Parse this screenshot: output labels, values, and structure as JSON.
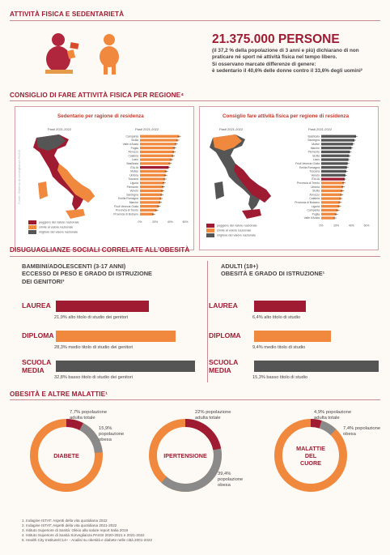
{
  "sections": {
    "s1": "ATTIVITÀ FISICA E SEDENTARIETÀ",
    "s2": "CONSIGLIO DI FARE ATTIVITÀ FISICA PER REGIONE⁴",
    "s3": "DISUGUAGLIANZE SOCIALI CORRELATE ALL'OBESITÀ",
    "s4": "OBESITÀ E ALTRE  MALATTIE¹"
  },
  "headline": {
    "number": "21.375.000 PERSONE",
    "line1": "(il 37,2 % della popolazione di 3 anni e più) dichiarano di non",
    "line2": "praticare né sport né attività fisica nel tempo libero.",
    "line3": "Si osservano marcate differenze di genere:",
    "line4": "è sedentario il 40,6% delle donne contro il 33,6% degli uomini²"
  },
  "maps": {
    "left": {
      "title": "Sedentario per ragione di residenza",
      "period_a": "Pasti 2021-2022",
      "period_b": "Pasti 2021-2022",
      "watermark": "Fonte: Sistema di sorveglianza PASSI",
      "regions": [
        "Campania",
        "Sicilia",
        "Valle d'Aosta",
        "Puglia",
        "Abruzzo",
        "Calabria",
        "Lazio",
        "Basilicata",
        "ITALIA",
        "Molise",
        "Umbria",
        "Toscana",
        "Liguria",
        "Piemonte",
        "Veneto",
        "Sardegna",
        "Emilia Romagna",
        "Marche",
        "Friuli Venezia Giulia",
        "Provincia di Trento",
        "Provincia di Bolzano"
      ],
      "values": [
        52,
        50,
        48,
        46,
        45,
        44,
        42,
        40,
        38,
        35,
        34,
        33,
        32,
        31,
        30,
        29,
        28,
        27,
        25,
        22,
        18
      ],
      "kinds": [
        "o",
        "o",
        "o",
        "o",
        "o",
        "o",
        "o",
        "o",
        "i",
        "o",
        "o",
        "o",
        "o",
        "o",
        "o",
        "o",
        "o",
        "o",
        "o",
        "o",
        "o"
      ],
      "ticks": [
        "0%",
        "20%",
        "40%",
        "60%"
      ],
      "legend": [
        "peggiore del valore nazionale",
        "simile al valore nazionale",
        "migliore del valore nazionale"
      ]
    },
    "right": {
      "title": "Consiglio fare attività fisica per regione di residenza",
      "period_a": "Pasti 2021-2022",
      "period_b": "Pasti 2021-2022",
      "regions": [
        "Basilicata",
        "Sardegna",
        "Molise",
        "Marche",
        "Piemonte",
        "Sicilia",
        "Lazio",
        "Friuli Venezia Giulia",
        "Emilia Romagna",
        "Toscana",
        "Veneto",
        "ITALIA",
        "Provincia di Trento",
        "Umbria",
        "Sicilia",
        "Abruzzo",
        "Calabria",
        "Provincia di Bolzano",
        "Liguria",
        "Campania",
        "Puglia",
        "Valle d'Aosta"
      ],
      "values": [
        46,
        44,
        42,
        40,
        38,
        37,
        36,
        35,
        34,
        33,
        32,
        31,
        30,
        29,
        28,
        27,
        26,
        25,
        24,
        22,
        20,
        18
      ],
      "kinds": [
        "g",
        "g",
        "g",
        "g",
        "g",
        "g",
        "g",
        "g",
        "g",
        "g",
        "g",
        "i",
        "o",
        "o",
        "o",
        "o",
        "o",
        "o",
        "o",
        "o",
        "o",
        "o"
      ],
      "ticks": [
        "0%",
        "20%",
        "40%",
        "60%"
      ],
      "legend": [
        "peggiore del valore nazionale",
        "simile al valore nazionale",
        "migliore del valore nazionale"
      ]
    }
  },
  "inequalities": {
    "children_heading": [
      "BAMBINI/ADOLESCENTI (3-17 ANNI)",
      "ECCESSO DI PESO E GRADO DI ISTRUZIONE",
      "DEI GENITORI³"
    ],
    "adults_heading": [
      "ADULTI (18+)",
      "OBESITÀ E GRADO DI ISTRUZIONE¹"
    ],
    "children": [
      {
        "label": "LAUREA",
        "label2": "",
        "value": 21.9,
        "caption": "21,9% alto titolo di studio dei genitori",
        "color": "#9e1b32"
      },
      {
        "label": "DIPLOMA",
        "label2": "",
        "value": 28.3,
        "caption": "28,3% medio titolo di studio dei genitori",
        "color": "#f0893e"
      },
      {
        "label": "SCUOLA",
        "label2": "MEDIA",
        "value": 32.8,
        "caption": "32,8% basso titolo di studio dei genitori",
        "color": "#555555"
      }
    ],
    "adults": [
      {
        "label": "LAUREA",
        "label2": "",
        "value": 6.4,
        "caption": "6,4% alto titolo di studio",
        "color": "#9e1b32"
      },
      {
        "label": "DIPLOMA",
        "label2": "",
        "value": 9.4,
        "caption": "9,4% medio titolo di studio",
        "color": "#f0893e"
      },
      {
        "label": "SCUOLA",
        "label2": "MEDIA",
        "value": 15.3,
        "caption": "15,3% basso titolo di studio",
        "color": "#555555"
      }
    ]
  },
  "diseases": [
    {
      "name": [
        "DIABETE"
      ],
      "color_name": "#9e1b32",
      "cap_a": [
        "7,7% popolazione",
        "adulta totale"
      ],
      "a": 7.7,
      "cap_b": [
        "15,9%",
        "popolazione",
        "obesa"
      ],
      "b": 15.9
    },
    {
      "name": [
        "IPERTENSIONE"
      ],
      "color_name": "#9e1b32",
      "cap_a": [
        "22% popolazione",
        "adulta totale"
      ],
      "a": 22,
      "cap_b": [
        "39,4%",
        "popolazione",
        "obesa"
      ],
      "b": 39.4
    },
    {
      "name": [
        "MALATTIE",
        "DEL",
        "CUORE"
      ],
      "color_name": "#9e1b32",
      "cap_a": [
        "4,9% popolazione",
        "adulta totale"
      ],
      "a": 4.9,
      "cap_b": [
        "7,4% popolazione",
        "obesa"
      ],
      "b": 7.4
    }
  ],
  "footnotes": [
    "1. Indagine ISTAT: Aspetti della vita quotidiana 2022",
    "2. Indagine ISTAT: Aspetti della vita quotidiana 2021-2022",
    "3. Istituto Superiore di Sanità: Okkio alla salute report Italia 2019",
    "4. Istituto Superiore di Sanità Sorveglianza PASSI 2020-2021 e 2021-2022",
    "5. Health City Institute/C14+ - Analisi su obesità e diabete nelle città 2001-2022"
  ],
  "colors": {
    "crimson": "#9e1b32",
    "orange": "#f0893e",
    "dark": "#555555",
    "grey": "#8a8a8a"
  }
}
